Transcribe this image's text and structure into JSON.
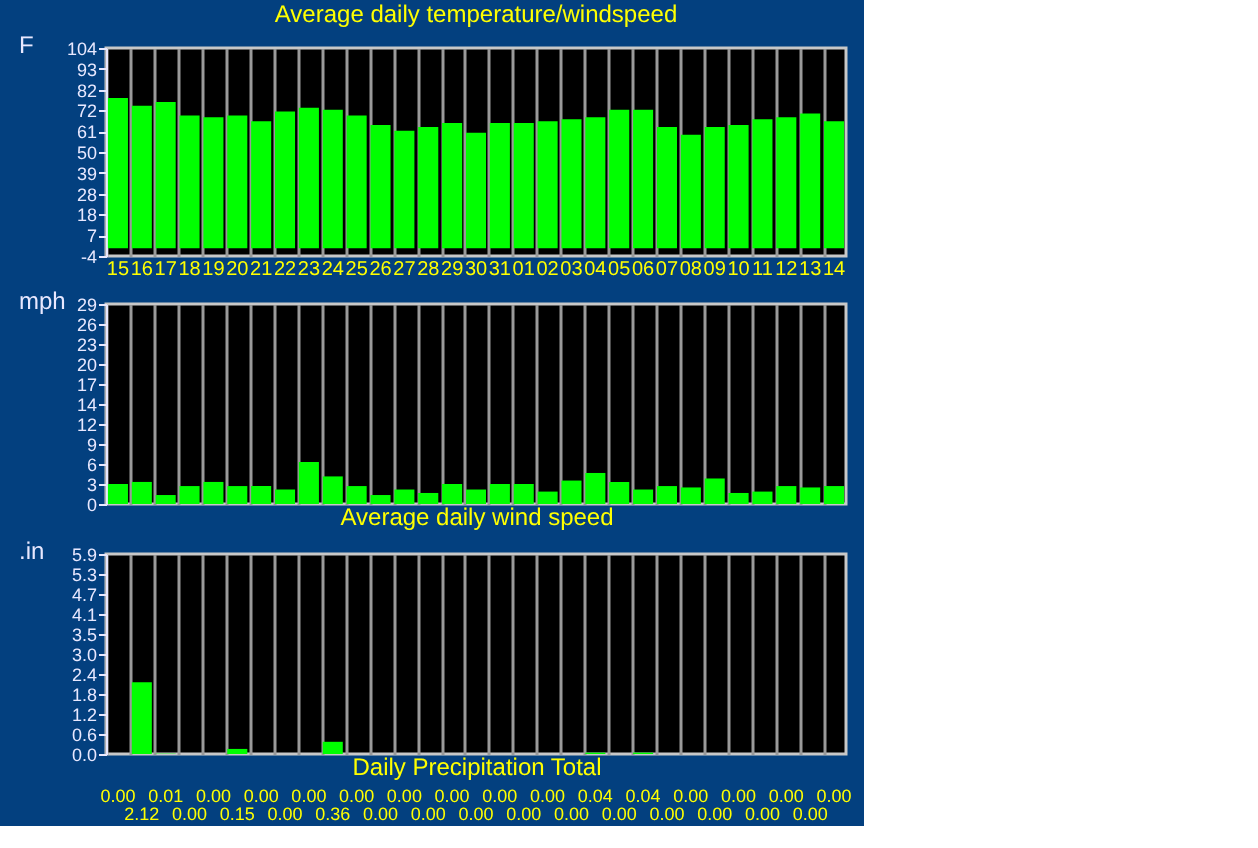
{
  "chart_data": [
    {
      "type": "bar",
      "title": "Average daily temperature/windspeed",
      "ylabel": "F",
      "color": "#00ff00",
      "grid": "x",
      "categories": [
        "15",
        "16",
        "17",
        "18",
        "19",
        "20",
        "21",
        "22",
        "23",
        "24",
        "25",
        "26",
        "27",
        "28",
        "29",
        "30",
        "31",
        "01",
        "02",
        "03",
        "04",
        "05",
        "06",
        "07",
        "08",
        "09",
        "10",
        "11",
        "12",
        "13",
        "14"
      ],
      "values": [
        78,
        74,
        76,
        69,
        68,
        69,
        66,
        71,
        73,
        72,
        69,
        64,
        61,
        63,
        65,
        60,
        65,
        65,
        66,
        67,
        68,
        72,
        72,
        63,
        59,
        63,
        64,
        67,
        68,
        70,
        66
      ],
      "ylim": [
        -4,
        104
      ],
      "yticks": [
        -4,
        {
          "value": 6.8,
          "label": "7"
        },
        {
          "value": 17.6,
          "label": "18"
        },
        {
          "value": 28.4,
          "label": "28"
        },
        {
          "value": 39.2,
          "label": "39"
        },
        50,
        {
          "value": 60.8,
          "label": "61"
        },
        {
          "value": 71.6,
          "label": "72"
        },
        {
          "value": 82.4,
          "label": "82"
        },
        {
          "value": 93.2,
          "label": "93"
        },
        104
      ]
    },
    {
      "type": "bar",
      "xlabel": "Average daily wind speed",
      "ylabel": "mph",
      "color": "#00ff00",
      "grid": "x",
      "tick_labels": "y",
      "categories": [
        "15",
        "16",
        "17",
        "18",
        "19",
        "20",
        "21",
        "22",
        "23",
        "24",
        "25",
        "26",
        "27",
        "28",
        "29",
        "30",
        "31",
        "01",
        "02",
        "03",
        "04",
        "05",
        "06",
        "07",
        "08",
        "09",
        "10",
        "11",
        "12",
        "13",
        "14"
      ],
      "values": [
        2.9,
        3.2,
        1.3,
        2.6,
        3.2,
        2.6,
        2.6,
        2.1,
        6.1,
        4.0,
        2.6,
        1.3,
        2.1,
        1.6,
        2.9,
        2.1,
        2.9,
        2.9,
        1.8,
        3.4,
        4.5,
        3.2,
        2.1,
        2.6,
        2.4,
        3.7,
        1.6,
        1.8,
        2.6,
        2.4,
        2.6
      ],
      "ylim": [
        0,
        29
      ],
      "yticks": [
        0,
        {
          "value": 2.9,
          "label": "3"
        },
        {
          "value": 5.8,
          "label": "6"
        },
        {
          "value": 8.7,
          "label": "9"
        },
        {
          "value": 11.6,
          "label": "12"
        },
        {
          "value": 14.5,
          "label": "14"
        },
        {
          "value": 17.4,
          "label": "17"
        },
        {
          "value": 20.3,
          "label": "20"
        },
        {
          "value": 23.2,
          "label": "23"
        },
        {
          "value": 26.1,
          "label": "26"
        },
        29
      ]
    },
    {
      "type": "bar",
      "xlabel": "Daily Precipitation Total",
      "ylabel": ".in",
      "color": "#00ff00",
      "grid": "x",
      "tick_labels": "y",
      "categories": [
        "15",
        "16",
        "17",
        "18",
        "19",
        "20",
        "21",
        "22",
        "23",
        "24",
        "25",
        "26",
        "27",
        "28",
        "29",
        "30",
        "31",
        "01",
        "02",
        "03",
        "04",
        "05",
        "06",
        "07",
        "08",
        "09",
        "10",
        "11",
        "12",
        "13",
        "14"
      ],
      "values": [
        0.0,
        2.12,
        0.01,
        0.0,
        0.0,
        0.15,
        0.0,
        0.0,
        0.0,
        0.36,
        0.0,
        0.0,
        0.0,
        0.0,
        0.0,
        0.0,
        0.0,
        0.0,
        0.0,
        0.0,
        0.04,
        0.0,
        0.04,
        0.0,
        0.0,
        0.0,
        0.0,
        0.0,
        0.0,
        0.0,
        0.0
      ],
      "value_labels": [
        "0.00",
        "2.12",
        "0.01",
        "0.00",
        "0.00",
        "0.15",
        "0.00",
        "0.00",
        "0.00",
        "0.36",
        "0.00",
        "0.00",
        "0.00",
        "0.00",
        "0.00",
        "0.00",
        "0.00",
        "0.00",
        "0.00",
        "0.00",
        "0.04",
        "0.00",
        "0.04",
        "0.00",
        "0.00",
        "0.00",
        "0.00",
        "0.00",
        "0.00",
        "0.00",
        "0.00"
      ],
      "ylim": [
        0,
        5.9
      ],
      "yticks": [
        {
          "value": 0,
          "label": "0.0"
        },
        {
          "value": 0.59,
          "label": "0.6"
        },
        {
          "value": 1.18,
          "label": "1.2"
        },
        {
          "value": 1.77,
          "label": "1.8"
        },
        {
          "value": 2.36,
          "label": "2.4"
        },
        {
          "value": 2.95,
          "label": "3.0"
        },
        {
          "value": 3.54,
          "label": "3.5"
        },
        {
          "value": 4.13,
          "label": "4.1"
        },
        {
          "value": 4.72,
          "label": "4.7"
        },
        {
          "value": 5.31,
          "label": "5.3"
        },
        {
          "value": 5.9,
          "label": "5.9"
        }
      ]
    }
  ]
}
